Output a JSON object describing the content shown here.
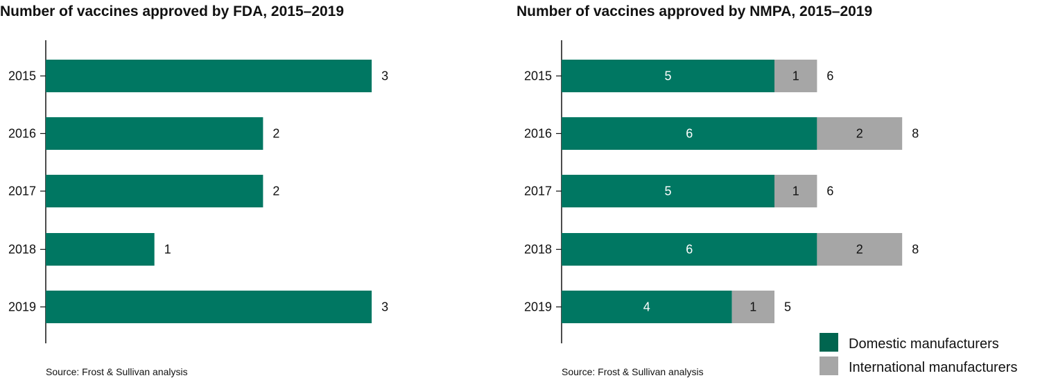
{
  "colors": {
    "domestic": "#007762",
    "international": "#a6a6a6",
    "legend_domestic": "#00654f"
  },
  "chart_data": [
    {
      "type": "bar",
      "orientation": "horizontal",
      "title": "Number of vaccines approved by FDA, 2015–2019",
      "categories": [
        "2015",
        "2016",
        "2017",
        "2018",
        "2019"
      ],
      "values": [
        3,
        2,
        2,
        1,
        3
      ],
      "xlim": [
        0,
        3
      ],
      "grid": false,
      "source": "Source: Frost & Sullivan analysis"
    },
    {
      "type": "bar",
      "orientation": "horizontal",
      "stacked": true,
      "title": "Number of vaccines approved by NMPA, 2015–2019",
      "categories": [
        "2015",
        "2016",
        "2017",
        "2018",
        "2019"
      ],
      "series": [
        {
          "name": "Domestic manufacturers",
          "values": [
            5,
            6,
            5,
            6,
            4
          ]
        },
        {
          "name": "International manufacturers",
          "values": [
            1,
            2,
            1,
            2,
            1
          ]
        }
      ],
      "totals": [
        6,
        8,
        6,
        8,
        5
      ],
      "xlim": [
        0,
        8
      ],
      "grid": false,
      "legend": "bottom-right",
      "source": "Source: Frost & Sullivan analysis"
    }
  ]
}
